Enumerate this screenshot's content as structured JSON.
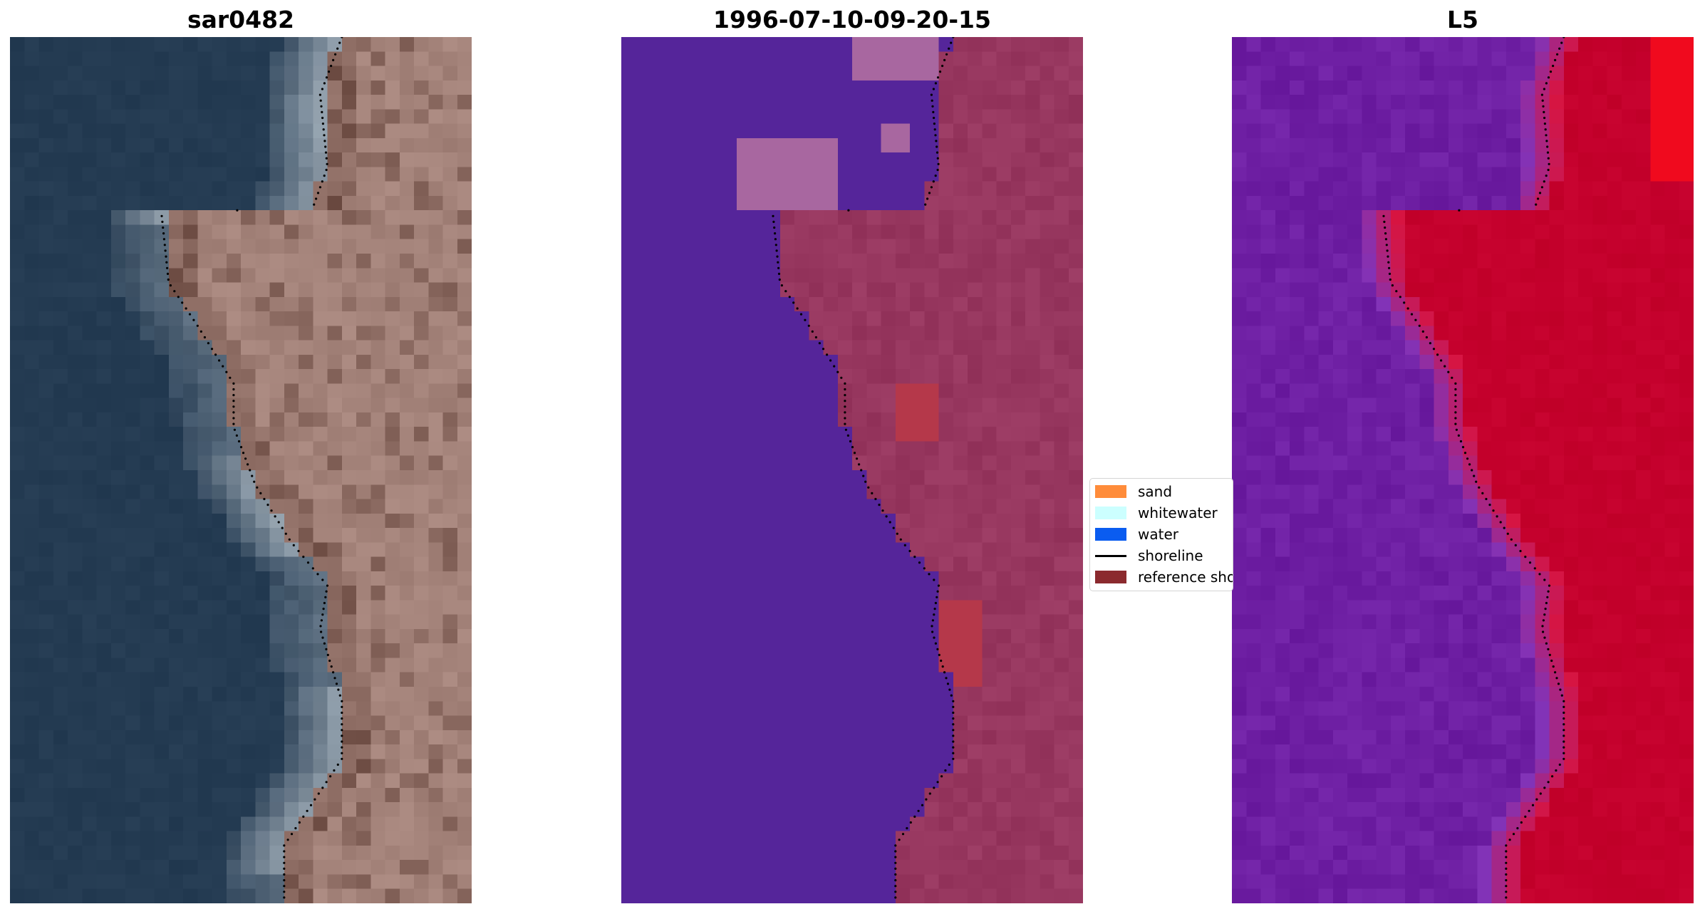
{
  "panels": [
    {
      "id": "rgb",
      "title": "sar0482",
      "image_description": "rgb"
    },
    {
      "id": "classified",
      "title": "1996-07-10-09-20-15",
      "image_description": "classification"
    },
    {
      "id": "index",
      "title": "L5",
      "image_description": "index"
    }
  ],
  "legend": {
    "items": [
      {
        "label": "sand",
        "color": "#ff8c3a",
        "kind": "patch"
      },
      {
        "label": "whitewater",
        "color": "#ccffff",
        "kind": "patch"
      },
      {
        "label": "water",
        "color": "#0a5cf0",
        "kind": "patch"
      },
      {
        "label": "shoreline",
        "color": "#000000",
        "kind": "line"
      },
      {
        "label": "reference shoreline",
        "color": "#8b2a2e",
        "kind": "patch"
      }
    ]
  },
  "colors": {
    "ocean_rgb": "#243b52",
    "land_rgb": "#a4837a",
    "water_class": "#55259a",
    "land_class": "#97375f",
    "index_water": "#6e1fa3",
    "index_land": "#c4002c"
  }
}
